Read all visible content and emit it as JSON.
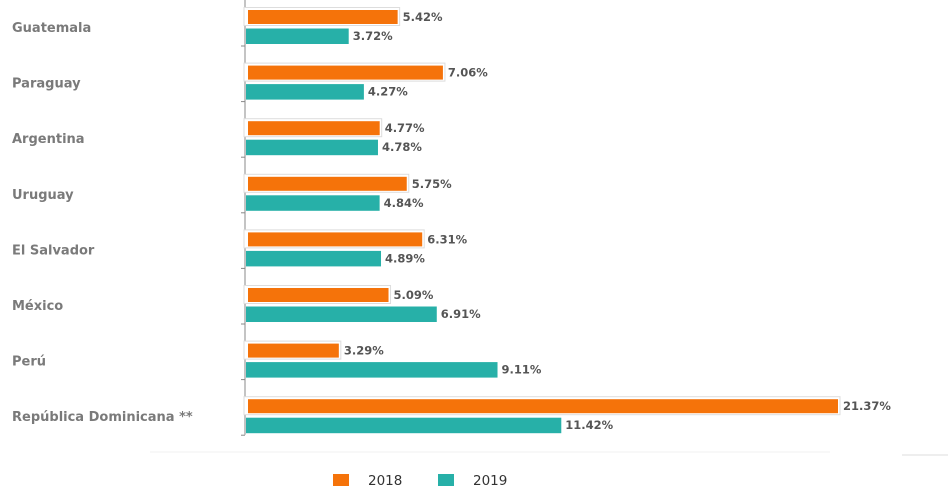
{
  "chart_data": {
    "type": "bar",
    "orientation": "horizontal",
    "title": "",
    "xlabel": "",
    "ylabel": "",
    "xlim": [
      0,
      21.37
    ],
    "grid": false,
    "legend_position": "bottom",
    "categories": [
      "Guatemala",
      "Paraguay",
      "Argentina",
      "Uruguay",
      "El Salvador",
      "México",
      "Perú",
      "República Dominicana **"
    ],
    "series": [
      {
        "name": "2018",
        "color": "#f5730a",
        "values": [
          5.42,
          7.06,
          4.77,
          5.75,
          6.31,
          5.09,
          3.29,
          21.37
        ],
        "labels": [
          "5.42%",
          "7.06%",
          "4.77%",
          "5.75%",
          "6.31%",
          "5.09%",
          "3.29%",
          "21.37%"
        ]
      },
      {
        "name": "2019",
        "color": "#27b0a8",
        "values": [
          3.72,
          4.27,
          4.78,
          4.84,
          4.89,
          6.91,
          9.11,
          11.42
        ],
        "labels": [
          "3.72%",
          "4.27%",
          "4.78%",
          "4.84%",
          "4.89%",
          "6.91%",
          "9.11%",
          "11.42%"
        ]
      }
    ]
  }
}
